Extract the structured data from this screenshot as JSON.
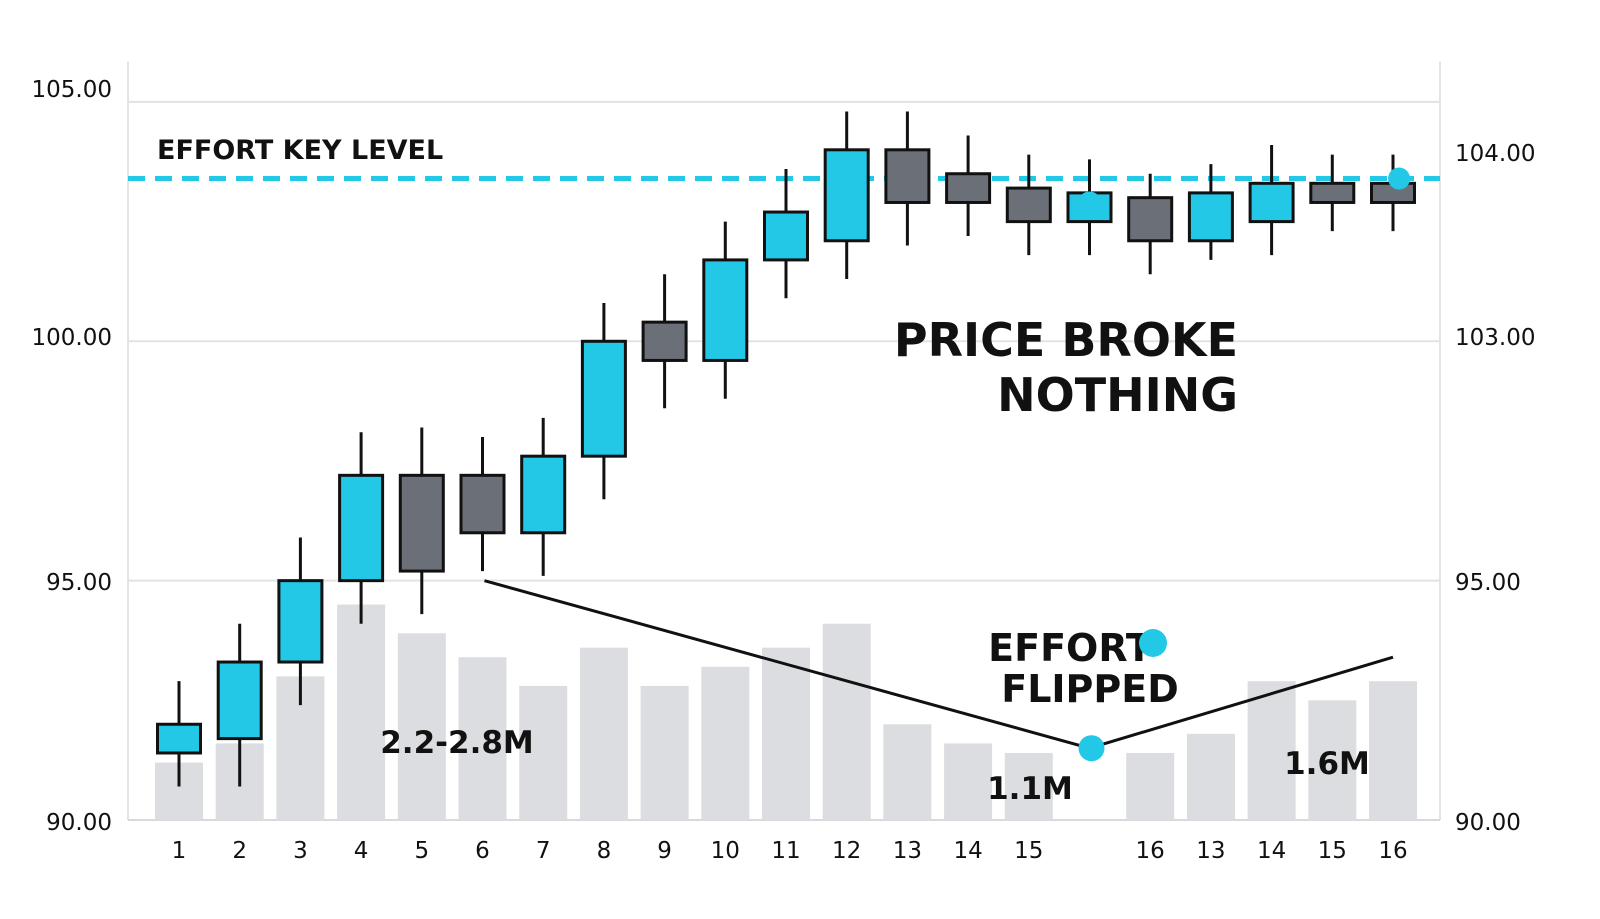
{
  "chart_data": {
    "type": "candlestick",
    "title": "",
    "xlabel": "",
    "ylabel": "",
    "ylim": [
      90,
      105.5
    ],
    "left_ticks": [
      "105.00",
      "100.00",
      "95.00",
      "90.00"
    ],
    "right_ticks": [
      "104.00",
      "103.00",
      "95.00",
      "90.00"
    ],
    "grid": true,
    "colors": {
      "bull": "#22c8e6",
      "bear": "#6b6f78",
      "volume": "#dcdde0",
      "level": "#22c8e6",
      "outline": "#111111"
    },
    "key_level": {
      "label": "EFFORT KEY LEVEL",
      "value": 103.4
    },
    "candles": [
      {
        "x": "1",
        "open": 91.4,
        "high": 92.9,
        "low": 90.7,
        "close": 92.0,
        "volume": 91.2
      },
      {
        "x": "2",
        "open": 91.7,
        "high": 94.1,
        "low": 90.7,
        "close": 93.3,
        "volume": 91.6
      },
      {
        "x": "3",
        "open": 93.3,
        "high": 95.9,
        "low": 92.4,
        "close": 95.0,
        "volume": 93.0
      },
      {
        "x": "4",
        "open": 95.0,
        "high": 98.1,
        "low": 94.1,
        "close": 97.2,
        "volume": 94.5
      },
      {
        "x": "5",
        "open": 97.2,
        "high": 98.2,
        "low": 94.3,
        "close": 95.2,
        "volume": 93.9
      },
      {
        "x": "6",
        "open": 97.2,
        "high": 98.0,
        "low": 95.2,
        "close": 96.0,
        "volume": 93.4
      },
      {
        "x": "7",
        "open": 96.0,
        "high": 98.4,
        "low": 95.1,
        "close": 97.6,
        "volume": 92.8
      },
      {
        "x": "8",
        "open": 97.6,
        "high": 100.8,
        "low": 96.7,
        "close": 100.0,
        "volume": 93.6
      },
      {
        "x": "9",
        "open": 100.4,
        "high": 101.4,
        "low": 98.6,
        "close": 99.6,
        "volume": 92.8
      },
      {
        "x": "10",
        "open": 99.6,
        "high": 102.5,
        "low": 98.8,
        "close": 101.7,
        "volume": 93.2
      },
      {
        "x": "11",
        "open": 101.7,
        "high": 103.6,
        "low": 100.9,
        "close": 102.7,
        "volume": 93.6
      },
      {
        "x": "12",
        "open": 102.1,
        "high": 104.8,
        "low": 101.3,
        "close": 104.0,
        "volume": 94.1
      },
      {
        "x": "13",
        "open": 104.0,
        "high": 104.8,
        "low": 102.0,
        "close": 102.9,
        "volume": 92.0
      },
      {
        "x": "14",
        "open": 103.5,
        "high": 104.3,
        "low": 102.2,
        "close": 102.9,
        "volume": 91.6
      },
      {
        "x": "15",
        "open": 103.2,
        "high": 103.9,
        "low": 101.8,
        "close": 102.5,
        "volume": 91.4
      },
      {
        "x": "16",
        "open": 102.5,
        "high": 103.8,
        "low": 101.8,
        "close": 103.1,
        "volume": 0
      },
      {
        "x": "16",
        "open": 103.0,
        "high": 103.5,
        "low": 101.4,
        "close": 102.1,
        "volume": 91.4
      },
      {
        "x": "13",
        "open": 102.1,
        "high": 103.7,
        "low": 101.7,
        "close": 103.1,
        "volume": 91.8
      },
      {
        "x": "14",
        "open": 102.5,
        "high": 104.1,
        "low": 101.8,
        "close": 103.3,
        "volume": 92.9
      },
      {
        "x": "15",
        "open": 103.3,
        "high": 103.9,
        "low": 102.3,
        "close": 102.9,
        "volume": 92.5
      },
      {
        "x": "16",
        "open": 103.3,
        "high": 103.9,
        "low": 102.3,
        "close": 102.9,
        "volume": 92.9
      }
    ],
    "x_tick_labels": [
      "1",
      "2",
      "3",
      "4",
      "5",
      "6",
      "7",
      "8",
      "9",
      "10",
      "11",
      "12",
      "13",
      "14",
      "15",
      "",
      "16",
      "13",
      "14",
      "15",
      "16"
    ],
    "effort_line": {
      "points": [
        [
          5,
          95.0
        ],
        [
          15,
          91.5
        ],
        [
          20,
          93.4
        ]
      ],
      "marker_index": 15
    },
    "markers": [
      {
        "slot": 16,
        "value": 102.9
      },
      {
        "slot": 21.1,
        "value": 103.4
      }
    ],
    "annotations": {
      "price_broke_line1": "PRICE BROKE",
      "price_broke_line2": "NOTHING",
      "effort_flipped_line1": "EFFORT",
      "effort_flipped_line2": "FLIPPED",
      "vol_high": "2.2-2.8M",
      "vol_low": "1.1M",
      "vol_mid": "1.6M"
    }
  }
}
